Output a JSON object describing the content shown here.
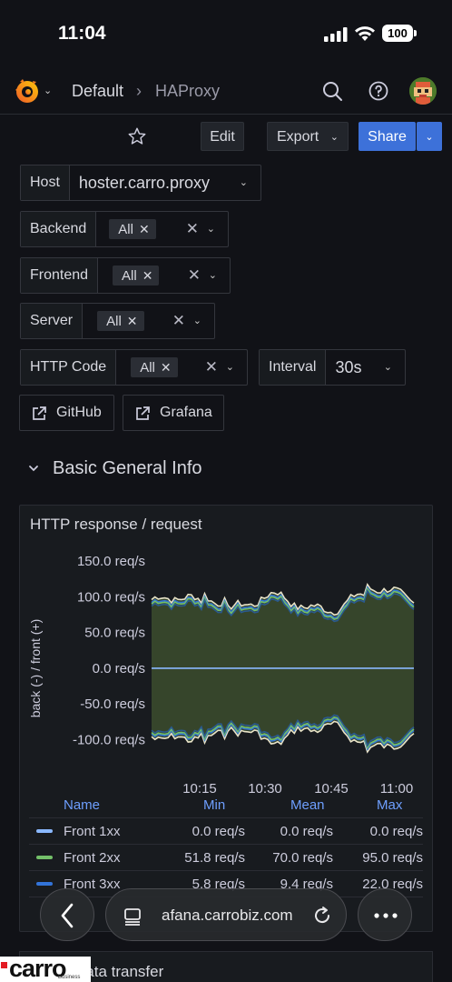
{
  "status": {
    "time": "11:04",
    "battery": "100"
  },
  "nav": {
    "crumb1": "Default",
    "crumb_sep": "›",
    "crumb2": "HAProxy"
  },
  "toolbar": {
    "edit": "Edit",
    "export": "Export",
    "share": "Share"
  },
  "variables": {
    "host": {
      "label": "Host",
      "value": "hoster.carro.proxy"
    },
    "backend": {
      "label": "Backend",
      "chip": "All"
    },
    "frontend": {
      "label": "Frontend",
      "chip": "All"
    },
    "server": {
      "label": "Server",
      "chip": "All"
    },
    "http_code": {
      "label": "HTTP Code",
      "chip": "All"
    },
    "interval": {
      "label": "Interval",
      "value": "30s"
    }
  },
  "links": {
    "github": "GitHub",
    "grafana": "Grafana"
  },
  "section": {
    "title": "Basic General Info"
  },
  "panel": {
    "title": "HTTP response / request"
  },
  "chart_data": {
    "type": "line",
    "ylabel": "back (-) / front (+)",
    "y_ticks": [
      "150.0 req/s",
      "100.0 req/s",
      "50.0 req/s",
      "0.0 req/s",
      "-50.0 req/s",
      "-100.0 req/s"
    ],
    "x_ticks": [
      "10:15",
      "10:30",
      "10:45",
      "11:00"
    ],
    "ylim": [
      -150,
      150
    ],
    "series": [
      {
        "name": "Front 1xx",
        "color": "#8ab8ff"
      },
      {
        "name": "Front 2xx",
        "color": "#73bf69"
      },
      {
        "name": "Front 3xx",
        "color": "#3274d9"
      }
    ]
  },
  "legend": {
    "headers": {
      "name": "Name",
      "min": "Min",
      "mean": "Mean",
      "max": "Max"
    },
    "rows": [
      {
        "name": "Front 1xx",
        "min": "0.0 req/s",
        "mean": "0.0 req/s",
        "max": "0.0 req/s",
        "color": "#8ab8ff"
      },
      {
        "name": "Front 2xx",
        "min": "51.8 req/s",
        "mean": "70.0 req/s",
        "max": "95.0 req/s",
        "color": "#73bf69"
      },
      {
        "name": "Front 3xx",
        "min": "5.8 req/s",
        "mean": "9.4 req/s",
        "max": "22.0 req/s",
        "color": "#3274d9"
      }
    ]
  },
  "panel2": {
    "title": "Data transfer"
  },
  "safari": {
    "url": "afana.carrobiz.com"
  },
  "watermark": {
    "brand": "carro",
    "sub": "Business"
  }
}
